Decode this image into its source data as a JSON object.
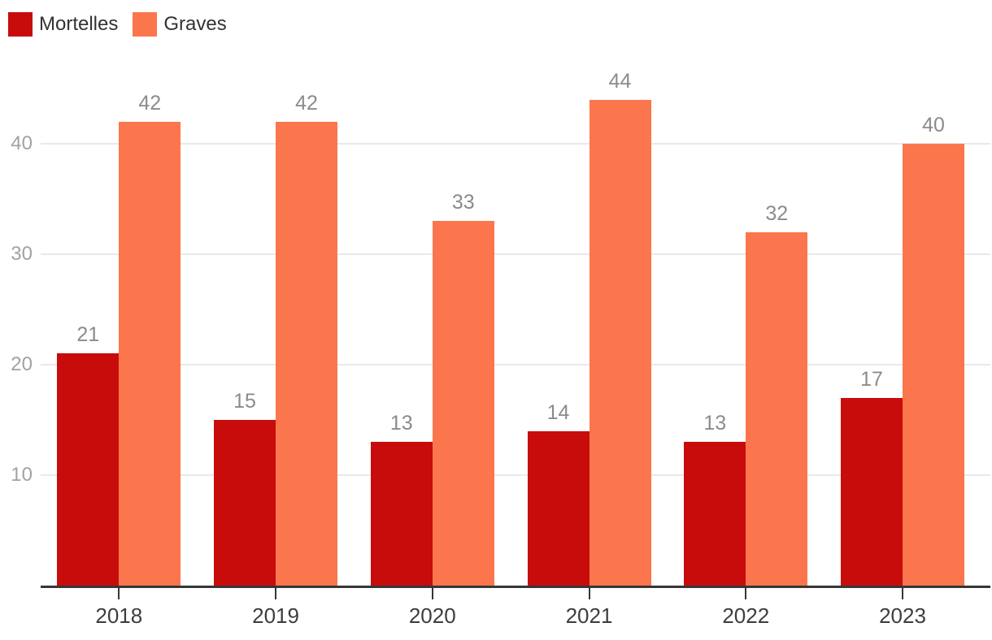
{
  "chart_data": {
    "type": "bar",
    "title": "",
    "categories": [
      "2018",
      "2019",
      "2020",
      "2021",
      "2022",
      "2023"
    ],
    "series": [
      {
        "name": "Mortelles",
        "color": "#c80c0c",
        "values": [
          21,
          15,
          13,
          14,
          13,
          17
        ]
      },
      {
        "name": "Graves",
        "color": "#fb764d",
        "values": [
          42,
          42,
          33,
          44,
          32,
          40
        ]
      }
    ],
    "ylim": [
      0,
      45
    ],
    "yticks": [
      10,
      20,
      30,
      40
    ],
    "ytick_labels": [
      "10",
      "20",
      "30",
      "40"
    ],
    "grid": true,
    "grid_color": "#e9e9e9",
    "axis_color": "#363636",
    "value_labels": true,
    "value_label_color": "#8b8b8b",
    "x_label_color": "#3d3d3d",
    "y_label_color": "#a2a2a2",
    "legend_position": "top-left",
    "legend_text_color": "#333333"
  }
}
